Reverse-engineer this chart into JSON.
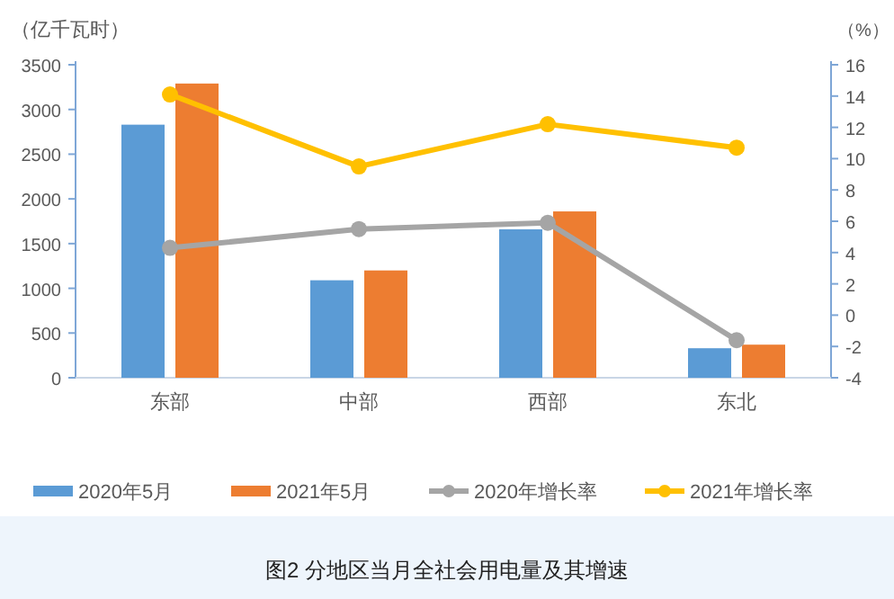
{
  "chart_data": {
    "type": "bar",
    "title": "图2 分地区当月全社会用电量及其增速",
    "ylabel": "（亿千瓦时）",
    "y2label": "（%）",
    "categories": [
      "东部",
      "中部",
      "西部",
      "东北"
    ],
    "series": [
      {
        "name": "2020年5月",
        "color": "#5b9bd5",
        "values": [
          2830,
          1090,
          1660,
          330
        ]
      },
      {
        "name": "2021年5月",
        "color": "#ed7d31",
        "values": [
          3290,
          1200,
          1860,
          370
        ]
      },
      {
        "name": "2020年增长率",
        "type": "line",
        "axis": "y2",
        "color": "#a5a5a5",
        "marker": "circle",
        "values": [
          4.3,
          5.5,
          5.9,
          -1.6
        ]
      },
      {
        "name": "2021年增长率",
        "type": "line",
        "axis": "y2",
        "color": "#ffc000",
        "marker": "circle",
        "values": [
          14.1,
          9.5,
          12.2,
          10.7
        ]
      }
    ],
    "ylim": [
      0,
      3500
    ],
    "yticks": [
      0,
      500,
      1000,
      1500,
      2000,
      2500,
      3000,
      3500
    ],
    "y2lim": [
      -4,
      16
    ],
    "y2ticks": [
      -4,
      -2,
      0,
      2,
      4,
      6,
      8,
      10,
      12,
      14,
      16
    ],
    "grid": false,
    "legend": "bottom"
  }
}
